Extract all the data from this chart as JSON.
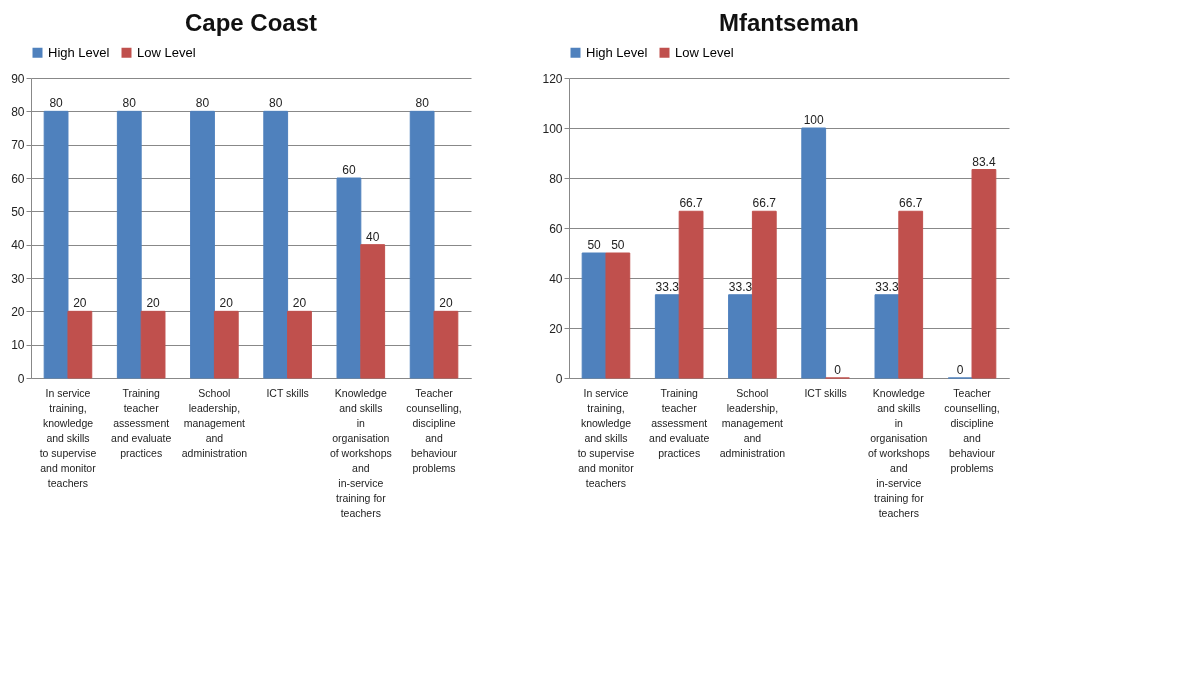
{
  "chart_data": [
    {
      "type": "bar",
      "title": "Cape Coast",
      "categories": [
        "In service training, knowledge and skills to supervise and monitor teachers",
        "Training teacher assessment and evaluate practices",
        "School leadership, management and administration",
        "ICT skills",
        "Knowledge and skills in organisation of workshops and in-service training for teachers",
        "Teacher counselling, discipline and behaviour problems"
      ],
      "series": [
        {
          "name": "High Level",
          "color": "#4f81bd",
          "values": [
            80,
            80,
            80,
            80,
            60,
            80
          ]
        },
        {
          "name": "Low Level",
          "color": "#c0504d",
          "values": [
            20,
            20,
            20,
            20,
            40,
            20
          ]
        }
      ],
      "ylim": [
        0,
        90
      ],
      "yticks": [
        0,
        10,
        20,
        30,
        40,
        50,
        60,
        70,
        80,
        90
      ],
      "grid": "y",
      "legend": "top",
      "data_labels": true
    },
    {
      "type": "bar",
      "title": "Mfantseman",
      "categories": [
        "In service training, knowledge and skills to supervise and monitor teachers",
        "Training teacher assessment and evaluate practices",
        "School leadership, management and administration",
        "ICT skills",
        "Knowledge and skills in organisation of workshops and in-service training for teachers",
        "Teacher counselling, discipline and behaviour problems"
      ],
      "series": [
        {
          "name": "High Level",
          "color": "#4f81bd",
          "values": [
            50,
            33.3,
            33.3,
            100,
            33.3,
            0
          ]
        },
        {
          "name": "Low Level",
          "color": "#c0504d",
          "values": [
            50,
            66.7,
            66.7,
            0,
            66.7,
            83.4
          ]
        }
      ],
      "ylim": [
        0,
        120
      ],
      "yticks": [
        0,
        20,
        40,
        60,
        80,
        100,
        120
      ],
      "grid": "y",
      "legend": "top",
      "data_labels": true
    }
  ]
}
